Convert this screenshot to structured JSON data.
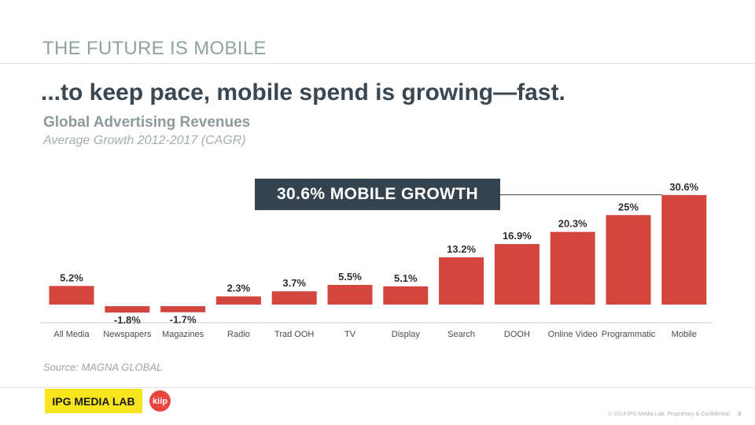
{
  "slide": {
    "section_title": "THE FUTURE IS MOBILE",
    "headline": "...to keep pace, mobile spend is growing—fast.",
    "subtitle": "Global Advertising Revenues",
    "subtitle2": "Average Growth 2012-2017 (CAGR)",
    "callout": "30.6% MOBILE GROWTH",
    "source": "Source: MAGNA GLOBAL",
    "logo_text": "IPG MEDIA LAB",
    "kiip_text": "kiip",
    "footer_text": "© 2014 IPG Media Lab. Proprietary & Confidential",
    "page_number": "3"
  },
  "colors": {
    "bar": "#d2463d",
    "axis": "#c8c8c8",
    "callout_bg": "#34434e"
  },
  "chart_data": {
    "type": "bar",
    "title": "Global Advertising Revenues",
    "subtitle": "Average Growth 2012-2017 (CAGR)",
    "xlabel": "",
    "ylabel": "",
    "unit": "%",
    "categories": [
      "All Media",
      "Newspapers",
      "Magazines",
      "Radio",
      "Trad OOH",
      "TV",
      "Display",
      "Search",
      "DOOH",
      "Online Video",
      "Programmatic",
      "Mobile"
    ],
    "values": [
      5.2,
      -1.8,
      -1.7,
      2.3,
      3.7,
      5.5,
      5.1,
      13.2,
      16.9,
      20.3,
      25,
      30.6
    ],
    "value_labels": [
      "5.2%",
      "-1.8%",
      "-1.7%",
      "2.3%",
      "3.7%",
      "5.5%",
      "5.1%",
      "13.2%",
      "16.9%",
      "20.3%",
      "25%",
      "30.6%"
    ],
    "ylim": [
      -2,
      31
    ],
    "grid": false,
    "annotation": "30.6% MOBILE GROWTH"
  }
}
